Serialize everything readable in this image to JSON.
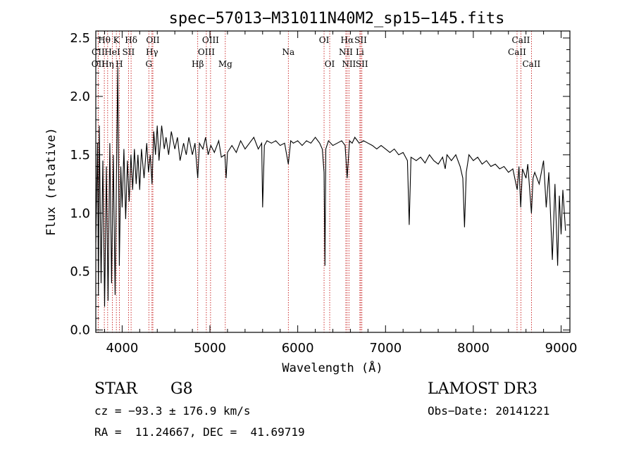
{
  "chart_data": {
    "type": "line",
    "title": "spec−57013−M31011N40M2_sp15−145.fits",
    "xlabel": "Wavelength (Å)",
    "ylabel": "Flux (relative)",
    "xlim": [
      3700,
      9100
    ],
    "ylim": [
      -0.02,
      2.56
    ],
    "xticks": [
      4000,
      5000,
      6000,
      7000,
      8000,
      9000
    ],
    "yticks": [
      0.0,
      0.5,
      1.0,
      1.5,
      2.0,
      2.5
    ],
    "ytick_labels": [
      "0.0",
      "0.5",
      "1.0",
      "1.5",
      "2.0",
      "2.5"
    ],
    "series": [
      {
        "name": "flux",
        "points": [
          [
            3700,
            0.75
          ],
          [
            3720,
            1.6
          ],
          [
            3730,
            0.3
          ],
          [
            3740,
            1.75
          ],
          [
            3760,
            0.4
          ],
          [
            3780,
            1.45
          ],
          [
            3800,
            0.2
          ],
          [
            3820,
            1.4
          ],
          [
            3840,
            0.25
          ],
          [
            3860,
            1.6
          ],
          [
            3880,
            0.4
          ],
          [
            3900,
            1.5
          ],
          [
            3920,
            0.3
          ],
          [
            3935,
            1.3
          ],
          [
            3950,
            2.25
          ],
          [
            3968,
            0.55
          ],
          [
            3985,
            1.4
          ],
          [
            4000,
            1.05
          ],
          [
            4020,
            1.55
          ],
          [
            4040,
            0.95
          ],
          [
            4060,
            1.45
          ],
          [
            4080,
            1.1
          ],
          [
            4100,
            1.5
          ],
          [
            4120,
            1.2
          ],
          [
            4140,
            1.55
          ],
          [
            4160,
            1.25
          ],
          [
            4180,
            1.5
          ],
          [
            4200,
            1.2
          ],
          [
            4220,
            1.55
          ],
          [
            4250,
            1.3
          ],
          [
            4280,
            1.6
          ],
          [
            4300,
            1.35
          ],
          [
            4320,
            1.5
          ],
          [
            4340,
            1.25
          ],
          [
            4360,
            1.7
          ],
          [
            4380,
            1.5
          ],
          [
            4400,
            1.75
          ],
          [
            4420,
            1.45
          ],
          [
            4450,
            1.75
          ],
          [
            4480,
            1.55
          ],
          [
            4500,
            1.65
          ],
          [
            4530,
            1.5
          ],
          [
            4560,
            1.7
          ],
          [
            4600,
            1.55
          ],
          [
            4630,
            1.65
          ],
          [
            4660,
            1.45
          ],
          [
            4700,
            1.6
          ],
          [
            4730,
            1.5
          ],
          [
            4760,
            1.65
          ],
          [
            4800,
            1.5
          ],
          [
            4830,
            1.6
          ],
          [
            4861,
            1.3
          ],
          [
            4880,
            1.6
          ],
          [
            4920,
            1.55
          ],
          [
            4950,
            1.65
          ],
          [
            4980,
            1.5
          ],
          [
            5010,
            1.58
          ],
          [
            5050,
            1.52
          ],
          [
            5100,
            1.62
          ],
          [
            5130,
            1.48
          ],
          [
            5170,
            1.5
          ],
          [
            5184,
            1.3
          ],
          [
            5200,
            1.52
          ],
          [
            5250,
            1.58
          ],
          [
            5300,
            1.52
          ],
          [
            5350,
            1.62
          ],
          [
            5400,
            1.55
          ],
          [
            5450,
            1.6
          ],
          [
            5500,
            1.65
          ],
          [
            5550,
            1.55
          ],
          [
            5590,
            1.6
          ],
          [
            5600,
            1.05
          ],
          [
            5620,
            1.58
          ],
          [
            5650,
            1.62
          ],
          [
            5700,
            1.6
          ],
          [
            5750,
            1.62
          ],
          [
            5800,
            1.58
          ],
          [
            5850,
            1.6
          ],
          [
            5893,
            1.42
          ],
          [
            5920,
            1.62
          ],
          [
            5950,
            1.6
          ],
          [
            6000,
            1.62
          ],
          [
            6050,
            1.58
          ],
          [
            6100,
            1.62
          ],
          [
            6150,
            1.6
          ],
          [
            6200,
            1.65
          ],
          [
            6250,
            1.6
          ],
          [
            6280,
            1.55
          ],
          [
            6300,
            1.35
          ],
          [
            6310,
            0.55
          ],
          [
            6320,
            1.55
          ],
          [
            6350,
            1.62
          ],
          [
            6400,
            1.58
          ],
          [
            6450,
            1.6
          ],
          [
            6500,
            1.62
          ],
          [
            6540,
            1.58
          ],
          [
            6563,
            1.3
          ],
          [
            6590,
            1.62
          ],
          [
            6620,
            1.6
          ],
          [
            6650,
            1.65
          ],
          [
            6700,
            1.6
          ],
          [
            6750,
            1.62
          ],
          [
            6800,
            1.6
          ],
          [
            6850,
            1.58
          ],
          [
            6900,
            1.55
          ],
          [
            6950,
            1.58
          ],
          [
            7000,
            1.55
          ],
          [
            7050,
            1.52
          ],
          [
            7100,
            1.55
          ],
          [
            7150,
            1.5
          ],
          [
            7200,
            1.52
          ],
          [
            7250,
            1.45
          ],
          [
            7270,
            0.9
          ],
          [
            7290,
            1.48
          ],
          [
            7350,
            1.45
          ],
          [
            7400,
            1.48
          ],
          [
            7450,
            1.43
          ],
          [
            7500,
            1.5
          ],
          [
            7550,
            1.45
          ],
          [
            7600,
            1.42
          ],
          [
            7650,
            1.48
          ],
          [
            7680,
            1.38
          ],
          [
            7700,
            1.5
          ],
          [
            7750,
            1.45
          ],
          [
            7800,
            1.5
          ],
          [
            7850,
            1.4
          ],
          [
            7880,
            1.3
          ],
          [
            7900,
            0.88
          ],
          [
            7920,
            1.35
          ],
          [
            7950,
            1.5
          ],
          [
            8000,
            1.45
          ],
          [
            8050,
            1.48
          ],
          [
            8100,
            1.42
          ],
          [
            8150,
            1.45
          ],
          [
            8200,
            1.4
          ],
          [
            8250,
            1.42
          ],
          [
            8300,
            1.38
          ],
          [
            8350,
            1.4
          ],
          [
            8400,
            1.35
          ],
          [
            8450,
            1.38
          ],
          [
            8500,
            1.2
          ],
          [
            8520,
            1.4
          ],
          [
            8540,
            1.05
          ],
          [
            8560,
            1.38
          ],
          [
            8600,
            1.3
          ],
          [
            8620,
            1.42
          ],
          [
            8662,
            1.0
          ],
          [
            8680,
            1.3
          ],
          [
            8700,
            1.35
          ],
          [
            8750,
            1.25
          ],
          [
            8800,
            1.45
          ],
          [
            8830,
            1.05
          ],
          [
            8860,
            1.35
          ],
          [
            8900,
            0.6
          ],
          [
            8930,
            1.25
          ],
          [
            8960,
            0.55
          ],
          [
            8980,
            1.15
          ],
          [
            9000,
            0.82
          ],
          [
            9020,
            1.2
          ],
          [
            9050,
            0.85
          ]
        ]
      }
    ],
    "spectral_lines": [
      {
        "label": "Hθ",
        "x": 3797,
        "row": 0
      },
      {
        "label": "K",
        "x": 3934,
        "row": 0
      },
      {
        "label": "Hδ",
        "x": 4102,
        "row": 0
      },
      {
        "label": "OII",
        "x": 4350,
        "row": 0
      },
      {
        "label": "OIII",
        "x": 5007,
        "row": 0
      },
      {
        "label": "OI",
        "x": 6300,
        "row": 0
      },
      {
        "label": "Hα",
        "x": 6563,
        "row": 0
      },
      {
        "label": "SII",
        "x": 6717,
        "row": 0
      },
      {
        "label": "CaII",
        "x": 8542,
        "row": 0
      },
      {
        "label": "CII",
        "x": 3727,
        "row": 1
      },
      {
        "label": "HeI",
        "x": 3889,
        "row": 1
      },
      {
        "label": "SII",
        "x": 4072,
        "row": 1
      },
      {
        "label": "Hγ",
        "x": 4340,
        "row": 1
      },
      {
        "label": "OIII",
        "x": 4959,
        "row": 1
      },
      {
        "label": "Na",
        "x": 5893,
        "row": 1
      },
      {
        "label": "NII",
        "x": 6548,
        "row": 1
      },
      {
        "label": "Li",
        "x": 6708,
        "row": 1
      },
      {
        "label": "CaII",
        "x": 8498,
        "row": 1
      },
      {
        "label": "OII",
        "x": 3727,
        "row": 2
      },
      {
        "label": "Hη",
        "x": 3835,
        "row": 2
      },
      {
        "label": "H",
        "x": 3968,
        "row": 2
      },
      {
        "label": "G",
        "x": 4304,
        "row": 2
      },
      {
        "label": "Hβ",
        "x": 4861,
        "row": 2
      },
      {
        "label": "Mg",
        "x": 5175,
        "row": 2
      },
      {
        "label": "OI",
        "x": 6364,
        "row": 2
      },
      {
        "label": "NII",
        "x": 6583,
        "row": 2
      },
      {
        "label": "SII",
        "x": 6731,
        "row": 2
      },
      {
        "label": "CaII",
        "x": 8662,
        "row": 2
      }
    ]
  },
  "info": {
    "object_class": "STAR",
    "subclass": "G8",
    "survey": "LAMOST DR3",
    "cz": "cz = −93.3 ± 176.9 km/s",
    "obs_date": "Obs−Date: 20141221",
    "coords": "RA =  11.24667, DEC =  41.69719"
  },
  "colors": {
    "line_marker": "#c00000",
    "spectrum": "#000000"
  }
}
